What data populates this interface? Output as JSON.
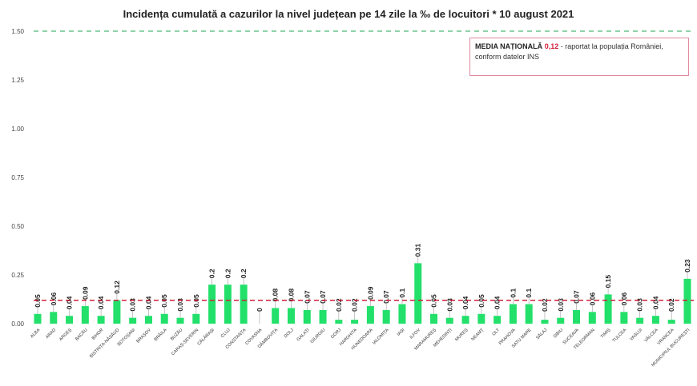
{
  "header": {
    "title": "Incidența cumulată a cazurilor la nivel județean pe 14 zile la ‰ de locuitori *  10 august 2021"
  },
  "legend": {
    "label": "MEDIA NAȚIONALĂ",
    "value": "0,12",
    "text_line1": " - raportat la populația României,",
    "text_line2": "conform datelor INS"
  },
  "colors": {
    "bar": "#22e06a",
    "national_average_line": "#d0203a",
    "top_line": "#8fd3a8",
    "legend_border": "#e08aa0"
  },
  "chart_data": {
    "type": "bar",
    "title": "Incidența cumulată a cazurilor la nivel județean pe 14 zile la ‰ de locuitori *  10 august 2021",
    "xlabel": "",
    "ylabel": "",
    "ylim": [
      0,
      1.5
    ],
    "yticks": [
      "0.00",
      "0.25",
      "0.50",
      "0.75",
      "1.00",
      "1.25",
      "1.50"
    ],
    "grid": false,
    "legend_position": "top-right",
    "reference_lines": [
      {
        "name": "MEDIA NAȚIONALĂ",
        "value": 0.12,
        "style": "dashed",
        "color": "#d0203a"
      },
      {
        "name": "limit",
        "value": 1.5,
        "style": "dashed",
        "color": "#8fd3a8"
      }
    ],
    "categories": [
      "ALBA",
      "ARAD",
      "ARGEȘ",
      "BACĂU",
      "BIHOR",
      "BISTRIȚA-NĂSĂUD",
      "BOTOȘANI",
      "BRAȘOV",
      "BRĂILA",
      "BUZĂU",
      "CARAȘ-SEVERIN",
      "CĂLĂRAȘI",
      "CLUJ",
      "CONSTANȚA",
      "COVASNA",
      "DÂMBOVIȚA",
      "DOLJ",
      "GALAȚI",
      "GIURGIU",
      "GORJ",
      "HARGHITA",
      "HUNEDOARA",
      "IALOMIȚA",
      "IAȘI",
      "ILFOV",
      "MARAMUREȘ",
      "MEHEDINȚI",
      "MUREȘ",
      "NEAMȚ",
      "OLT",
      "PRAHOVA",
      "SATU MARE",
      "SĂLAJ",
      "SIBIU",
      "SUCEAVA",
      "TELEORMAN",
      "TIMIȘ",
      "TULCEA",
      "VASLUI",
      "VÂLCEA",
      "VRANCEA",
      "MUNICIPIUL BUCUREȘTI"
    ],
    "values": [
      0.05,
      0.06,
      0.04,
      0.09,
      0.04,
      0.12,
      0.03,
      0.04,
      0.05,
      0.03,
      0.05,
      0.2,
      0.2,
      0.2,
      0,
      0.08,
      0.08,
      0.07,
      0.07,
      0.02,
      0.02,
      0.09,
      0.07,
      0.1,
      0.31,
      0.05,
      0.03,
      0.04,
      0.05,
      0.04,
      0.1,
      0.1,
      0.02,
      0.03,
      0.07,
      0.06,
      0.15,
      0.06,
      0.03,
      0.04,
      0.02,
      0.23
    ],
    "data_labels": [
      "0.05",
      "0.06",
      "0.04",
      "0.09",
      "0.04",
      "0.12",
      "0.03",
      "0.04",
      "0.05",
      "0.03",
      "0.05",
      "0.2",
      "0.2",
      "0.2",
      "0",
      "0.08",
      "0.08",
      "0.07",
      "0.07",
      "0.02",
      "0.02",
      "0.09",
      "0.07",
      "0.1",
      "0.31",
      "0.05",
      "0.03",
      "0.04",
      "0.05",
      "0.04",
      "0.1",
      "0.1",
      "0.02",
      "0.03",
      "0.07",
      "0.06",
      "0.15",
      "0.06",
      "0.03",
      "0.04",
      "0.02",
      "0.23"
    ]
  }
}
